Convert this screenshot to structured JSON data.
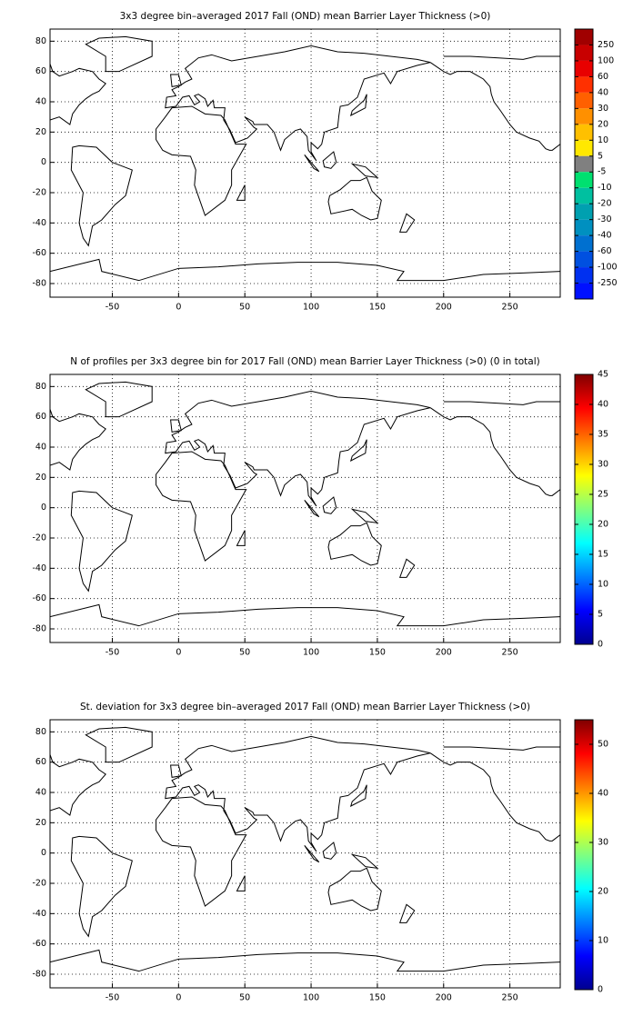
{
  "chart_data": [
    {
      "type": "map",
      "title": "3x3 degree bin–averaged 2017 Fall (OND) mean Barrier Layer Thickness (>0)",
      "xlim": [
        -97,
        288
      ],
      "ylim": [
        -89,
        88
      ],
      "xticks": [
        -50,
        0,
        50,
        100,
        150,
        200,
        250
      ],
      "yticks": [
        -80,
        -60,
        -40,
        -20,
        0,
        20,
        40,
        60,
        80
      ],
      "grid": true,
      "colorbar": {
        "ticks": [
          250,
          100,
          60,
          40,
          30,
          20,
          10,
          5,
          -5,
          -10,
          -20,
          -30,
          -40,
          -60,
          -100,
          -250
        ],
        "colors": [
          "#a00000",
          "#c80000",
          "#e80000",
          "#ff3000",
          "#ff6000",
          "#ff9000",
          "#ffc000",
          "#ffe800",
          "#808080",
          "#00e070",
          "#00c0a0",
          "#00a0b0",
          "#0090c0",
          "#0070d0",
          "#0050e0",
          "#0030f0",
          "#0010ff"
        ]
      }
    },
    {
      "type": "map",
      "title": "N of profiles per 3x3 degree bin for 2017 Fall (OND) mean Barrier Layer Thickness (>0) (0 in total)",
      "xlim": [
        -97,
        288
      ],
      "ylim": [
        -89,
        88
      ],
      "xticks": [
        -50,
        0,
        50,
        100,
        150,
        200,
        250
      ],
      "yticks": [
        -80,
        -60,
        -40,
        -20,
        0,
        20,
        40,
        60,
        80
      ],
      "grid": true,
      "colorbar": {
        "colormap": "jet",
        "clim": [
          0,
          45
        ],
        "ticks": [
          0,
          5,
          10,
          15,
          20,
          25,
          30,
          35,
          40,
          45
        ]
      }
    },
    {
      "type": "map",
      "title": "St. deviation for 3x3 degree bin–averaged 2017 Fall (OND) mean Barrier Layer Thickness (>0)",
      "xlim": [
        -97,
        288
      ],
      "ylim": [
        -89,
        88
      ],
      "xticks": [
        -50,
        0,
        50,
        100,
        150,
        200,
        250
      ],
      "yticks": [
        -80,
        -60,
        -40,
        -20,
        0,
        20,
        40,
        60,
        80
      ],
      "grid": true,
      "colorbar": {
        "colormap": "jet",
        "clim": [
          0,
          55
        ],
        "ticks": [
          0,
          10,
          20,
          30,
          40,
          50
        ]
      }
    }
  ]
}
